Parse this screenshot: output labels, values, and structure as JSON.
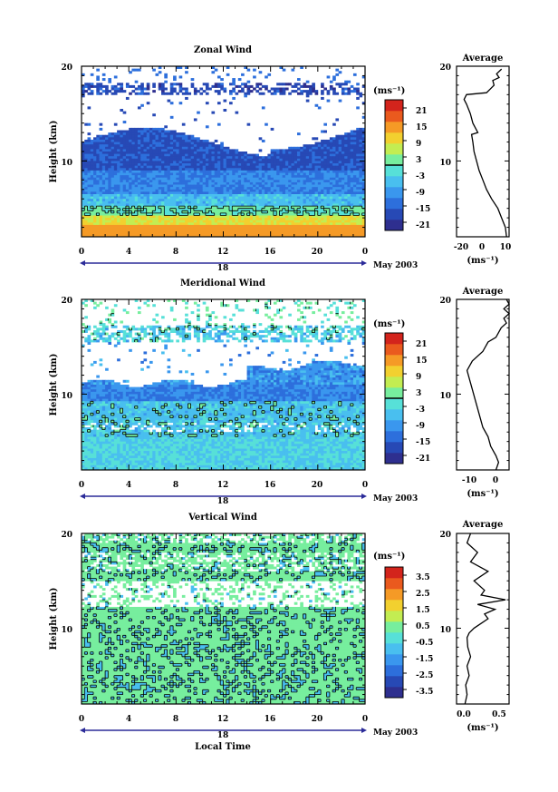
{
  "figure": {
    "date_label": "May 2003",
    "local_time_label": "Local Time"
  },
  "colorbar_unit": "(ms⁻¹)",
  "avg_unit": "(ms⁻¹)",
  "colors": {
    "scale": [
      "#2e2f8f",
      "#2749b5",
      "#2d6fdc",
      "#3a97ee",
      "#49bfef",
      "#57e0d8",
      "#77ee9e",
      "#c3ed52",
      "#f2d02f",
      "#f59a26",
      "#ea5a1e",
      "#d3241c"
    ],
    "contour": "#000000",
    "axis": "#000000",
    "range_arrow": "#2b2b99"
  },
  "chart_data": [
    {
      "type": "heatmap",
      "title": "Zonal Wind",
      "ylabel": "Height (km)",
      "xlim": [
        0,
        24
      ],
      "ylim": [
        2,
        20
      ],
      "x_ticks": [
        "0",
        "4",
        "8",
        "12",
        "16",
        "20",
        "0"
      ],
      "y_ticks": [
        "10",
        "20"
      ],
      "mid_label": "18",
      "colorbar": {
        "ticks": [
          "21",
          "15",
          "9",
          "3",
          "-3",
          "-9",
          "-15",
          "-21"
        ],
        "range": [
          -24,
          24
        ],
        "zero_line": true
      },
      "profile_points": [
        [
          10,
          2
        ],
        [
          9,
          3
        ],
        [
          6,
          4
        ],
        [
          3,
          5
        ],
        [
          -2,
          6
        ],
        [
          -6,
          7
        ],
        [
          -9,
          8
        ],
        [
          -12,
          9
        ],
        [
          -14,
          10
        ],
        [
          -16,
          11
        ],
        [
          -17,
          12
        ],
        [
          -18,
          12.8
        ],
        [
          -13,
          13
        ],
        [
          -17,
          14
        ],
        [
          -19,
          15
        ],
        [
          -22,
          16
        ],
        [
          -24,
          16.5
        ],
        [
          -22,
          17
        ],
        [
          -6,
          17.2
        ],
        [
          -3,
          17.6
        ],
        [
          0,
          18
        ],
        [
          -1,
          18.5
        ],
        [
          4,
          18.8
        ],
        [
          2,
          19.2
        ],
        [
          6,
          19.7
        ]
      ],
      "average": {
        "title": "Average",
        "x_ticks": [
          "-20",
          "0",
          "10"
        ],
        "xlim": [
          -30,
          12
        ],
        "y_ticks": [
          "10",
          "20"
        ]
      }
    },
    {
      "type": "heatmap",
      "title": "Meridional Wind",
      "ylabel": "Height (km)",
      "xlim": [
        0,
        24
      ],
      "ylim": [
        2,
        20
      ],
      "x_ticks": [
        "0",
        "4",
        "8",
        "12",
        "16",
        "20",
        "0"
      ],
      "y_ticks": [
        "10",
        "20"
      ],
      "mid_label": "18",
      "colorbar": {
        "ticks": [
          "21",
          "15",
          "9",
          "3",
          "-3",
          "-9",
          "-15",
          "-21"
        ],
        "range": [
          -24,
          24
        ],
        "zero_line": true
      },
      "profile_points": [
        [
          -1,
          2
        ],
        [
          0,
          2.8
        ],
        [
          -1,
          3.5
        ],
        [
          -3,
          4.5
        ],
        [
          -4,
          5.5
        ],
        [
          -6,
          6.5
        ],
        [
          -7,
          7.5
        ],
        [
          -8,
          8.5
        ],
        [
          -9,
          9.5
        ],
        [
          -10,
          10.5
        ],
        [
          -11,
          11.5
        ],
        [
          -12,
          12.5
        ],
        [
          -10,
          13.5
        ],
        [
          -6,
          14.5
        ],
        [
          -4,
          15.5
        ],
        [
          -1,
          16
        ],
        [
          0,
          16.5
        ],
        [
          1,
          17
        ],
        [
          3,
          17.5
        ],
        [
          2,
          18
        ],
        [
          4,
          18.5
        ],
        [
          2,
          19
        ],
        [
          4,
          19.5
        ],
        [
          3,
          20
        ]
      ],
      "average": {
        "title": "Average",
        "x_ticks": [
          "-10",
          "0"
        ],
        "xlim": [
          -16,
          4
        ],
        "y_ticks": [
          "10",
          "20"
        ]
      }
    },
    {
      "type": "heatmap",
      "title": "Vertical Wind",
      "ylabel": "Height (km)",
      "xlabel": "Local Time",
      "xlim": [
        0,
        24
      ],
      "ylim": [
        2,
        20
      ],
      "x_ticks": [
        "0",
        "4",
        "8",
        "12",
        "16",
        "20",
        "0"
      ],
      "y_ticks": [
        "10",
        "20"
      ],
      "mid_label": "18",
      "colorbar": {
        "ticks": [
          "3.5",
          "2.5",
          "1.5",
          "0.5",
          "-0.5",
          "-1.5",
          "-2.5",
          "-3.5"
        ],
        "range": [
          -4,
          4
        ],
        "zero_line": false
      },
      "profile_points": [
        [
          0.02,
          2
        ],
        [
          0.05,
          3
        ],
        [
          0.03,
          4
        ],
        [
          0.08,
          5
        ],
        [
          0.05,
          6
        ],
        [
          0.1,
          7
        ],
        [
          0.06,
          8
        ],
        [
          0.05,
          9
        ],
        [
          0.08,
          9.5
        ],
        [
          0.15,
          10
        ],
        [
          0.25,
          10.5
        ],
        [
          0.35,
          11
        ],
        [
          0.3,
          11.5
        ],
        [
          0.45,
          12
        ],
        [
          0.2,
          12.5
        ],
        [
          0.6,
          13
        ],
        [
          0.25,
          13.5
        ],
        [
          0.3,
          14
        ],
        [
          0.15,
          15
        ],
        [
          0.35,
          16
        ],
        [
          0.1,
          17
        ],
        [
          0.2,
          18
        ],
        [
          0.05,
          19
        ],
        [
          0.1,
          20
        ]
      ],
      "average": {
        "title": "Average",
        "x_ticks": [
          "0.0",
          "0.5"
        ],
        "xlim": [
          -0.1,
          0.65
        ],
        "y_ticks": [
          "10",
          "20"
        ]
      }
    }
  ]
}
